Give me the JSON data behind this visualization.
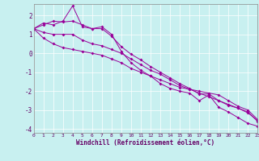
{
  "xlabel": "Windchill (Refroidissement éolien,°C)",
  "xlim": [
    0,
    23
  ],
  "ylim": [
    -4.2,
    2.6
  ],
  "xticks": [
    0,
    1,
    2,
    3,
    4,
    5,
    6,
    7,
    8,
    9,
    10,
    11,
    12,
    13,
    14,
    15,
    16,
    17,
    18,
    19,
    20,
    21,
    22,
    23
  ],
  "yticks": [
    -4,
    -3,
    -2,
    -1,
    0,
    1,
    2
  ],
  "bg_color": "#c8f0f0",
  "line_color": "#990099",
  "series": [
    [
      1.3,
      1.6,
      1.5,
      1.7,
      2.5,
      1.4,
      1.3,
      1.4,
      1.0,
      0.1,
      -0.5,
      -0.9,
      -1.2,
      -1.6,
      -1.85,
      -2.0,
      -2.1,
      -2.5,
      -2.2,
      -2.85,
      -3.1,
      -3.4,
      -3.7,
      -3.85
    ],
    [
      1.3,
      0.8,
      0.5,
      0.3,
      0.2,
      0.1,
      0.0,
      -0.1,
      -0.3,
      -0.5,
      -0.8,
      -1.0,
      -1.2,
      -1.4,
      -1.6,
      -1.8,
      -1.9,
      -2.0,
      -2.1,
      -2.2,
      -2.5,
      -2.8,
      -3.0,
      -3.5
    ],
    [
      1.3,
      1.1,
      1.0,
      1.0,
      1.0,
      0.7,
      0.5,
      0.4,
      0.2,
      0.0,
      -0.3,
      -0.6,
      -0.9,
      -1.1,
      -1.4,
      -1.7,
      -1.9,
      -2.1,
      -2.3,
      -2.5,
      -2.7,
      -2.9,
      -3.1,
      -3.6
    ],
    [
      1.3,
      1.5,
      1.7,
      1.65,
      1.7,
      1.5,
      1.3,
      1.3,
      0.9,
      0.35,
      -0.05,
      -0.35,
      -0.7,
      -1.0,
      -1.3,
      -1.6,
      -1.85,
      -2.15,
      -2.15,
      -2.5,
      -2.75,
      -2.9,
      -3.15,
      -3.55
    ]
  ]
}
